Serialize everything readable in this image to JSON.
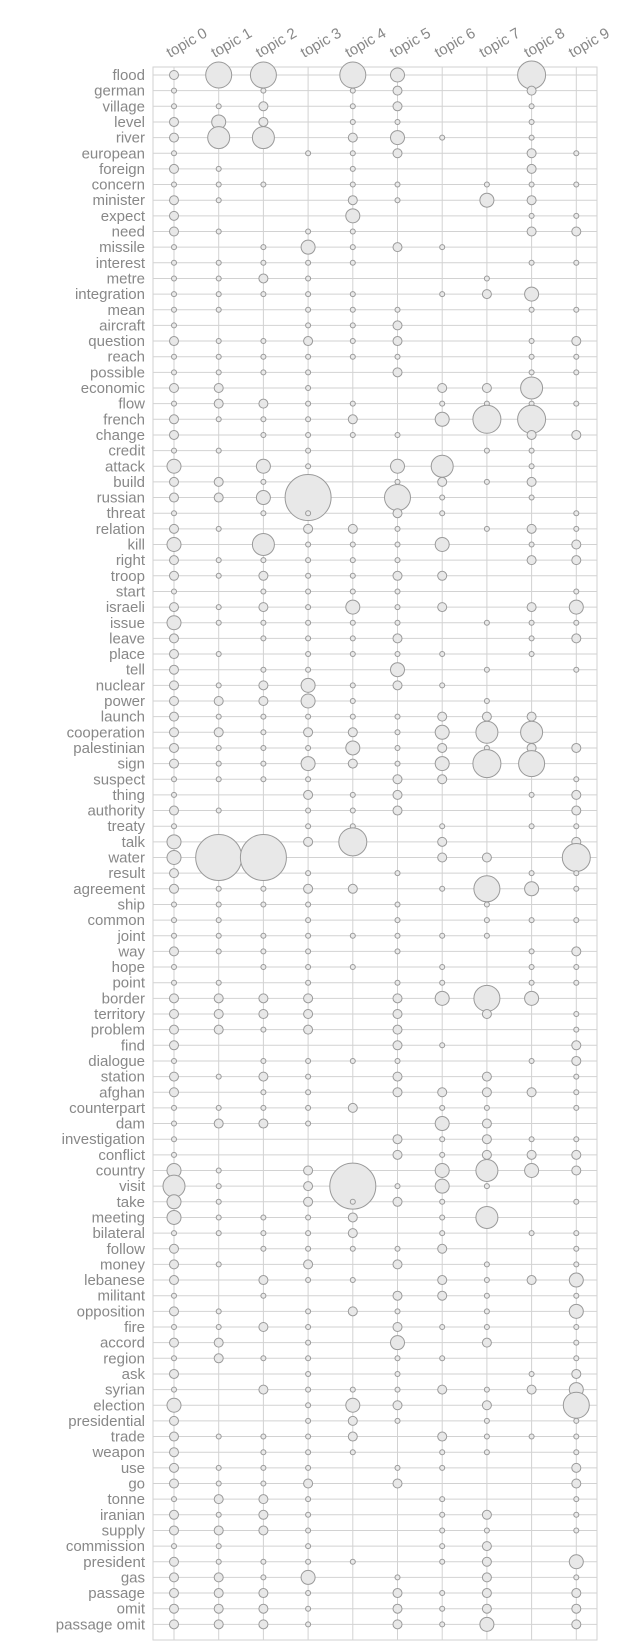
{
  "chart_data": {
    "type": "scatter",
    "subtype": "bubble-matrix",
    "title": "",
    "xlabel": "",
    "ylabel": "",
    "grid": true,
    "topics": [
      "topic 0",
      "topic 1",
      "topic 2",
      "topic 3",
      "topic 4",
      "topic 5",
      "topic 6",
      "topic 7",
      "topic 8",
      "topic 9"
    ],
    "words": [
      "flood",
      "german",
      "village",
      "level",
      "river",
      "european",
      "foreign",
      "concern",
      "minister",
      "expect",
      "need",
      "missile",
      "interest",
      "metre",
      "integration",
      "mean",
      "aircraft",
      "question",
      "reach",
      "possible",
      "economic",
      "flow",
      "french",
      "change",
      "credit",
      "attack",
      "build",
      "russian",
      "threat",
      "relation",
      "kill",
      "right",
      "troop",
      "start",
      "israeli",
      "issue",
      "leave",
      "place",
      "tell",
      "nuclear",
      "power",
      "launch",
      "cooperation",
      "palestinian",
      "sign",
      "suspect",
      "thing",
      "authority",
      "treaty",
      "talk",
      "water",
      "result",
      "agreement",
      "ship",
      "common",
      "joint",
      "way",
      "hope",
      "point",
      "border",
      "territory",
      "problem",
      "find",
      "dialogue",
      "station",
      "afghan",
      "counterpart",
      "dam",
      "investigation",
      "conflict",
      "country",
      "visit",
      "take",
      "meeting",
      "bilateral",
      "follow",
      "money",
      "lebanese",
      "militant",
      "opposition",
      "fire",
      "accord",
      "region",
      "ask",
      "syrian",
      "election",
      "presidential",
      "trade",
      "weapon",
      "use",
      "go",
      "tonne",
      "iranian",
      "supply",
      "commission",
      "president",
      "gas",
      "passage",
      "omit",
      "passage omit"
    ],
    "values": [
      [
        2,
        5,
        5,
        0,
        5,
        3,
        0,
        0,
        6,
        0
      ],
      [
        1,
        0,
        1,
        0,
        1,
        2,
        0,
        0,
        2,
        0
      ],
      [
        1,
        1,
        2,
        0,
        1,
        2,
        0,
        0,
        1,
        0
      ],
      [
        2,
        3,
        2,
        0,
        1,
        1,
        0,
        0,
        1,
        0
      ],
      [
        2,
        4,
        4,
        0,
        2,
        3,
        1,
        0,
        1,
        0
      ],
      [
        1,
        0,
        0,
        1,
        1,
        2,
        0,
        0,
        2,
        1
      ],
      [
        2,
        1,
        0,
        0,
        1,
        0,
        0,
        0,
        2,
        0
      ],
      [
        1,
        1,
        1,
        0,
        1,
        1,
        0,
        1,
        1,
        1
      ],
      [
        2,
        1,
        0,
        0,
        2,
        1,
        0,
        3,
        2,
        0
      ],
      [
        2,
        0,
        0,
        0,
        3,
        0,
        0,
        0,
        1,
        1
      ],
      [
        2,
        1,
        0,
        1,
        1,
        0,
        0,
        0,
        2,
        2
      ],
      [
        1,
        0,
        1,
        3,
        1,
        2,
        1,
        0,
        0,
        0
      ],
      [
        1,
        1,
        1,
        1,
        1,
        0,
        0,
        0,
        1,
        1
      ],
      [
        1,
        1,
        2,
        1,
        0,
        0,
        0,
        1,
        0,
        0
      ],
      [
        1,
        1,
        1,
        1,
        1,
        0,
        1,
        2,
        3,
        0
      ],
      [
        1,
        1,
        0,
        1,
        1,
        1,
        0,
        0,
        1,
        1
      ],
      [
        1,
        0,
        0,
        1,
        1,
        2,
        0,
        0,
        0,
        0
      ],
      [
        2,
        1,
        1,
        2,
        1,
        2,
        0,
        0,
        1,
        2
      ],
      [
        1,
        1,
        1,
        1,
        1,
        1,
        0,
        0,
        1,
        1
      ],
      [
        1,
        1,
        1,
        1,
        0,
        2,
        0,
        0,
        1,
        1
      ],
      [
        2,
        2,
        0,
        1,
        0,
        0,
        2,
        2,
        4,
        0
      ],
      [
        1,
        2,
        2,
        1,
        1,
        0,
        1,
        1,
        1,
        1
      ],
      [
        2,
        1,
        1,
        1,
        2,
        0,
        3,
        6,
        6,
        0
      ],
      [
        2,
        0,
        1,
        1,
        1,
        1,
        0,
        0,
        2,
        2
      ],
      [
        1,
        1,
        0,
        1,
        0,
        0,
        0,
        1,
        1,
        0
      ],
      [
        3,
        0,
        3,
        1,
        0,
        3,
        4,
        0,
        1,
        0
      ],
      [
        2,
        2,
        1,
        1,
        0,
        1,
        2,
        1,
        2,
        0
      ],
      [
        2,
        2,
        3,
        7,
        0,
        5,
        1,
        0,
        1,
        0
      ],
      [
        1,
        0,
        1,
        1,
        0,
        2,
        1,
        0,
        0,
        1
      ],
      [
        2,
        1,
        0,
        2,
        2,
        1,
        0,
        1,
        2,
        1
      ],
      [
        3,
        0,
        4,
        1,
        1,
        1,
        3,
        0,
        1,
        2
      ],
      [
        2,
        1,
        1,
        1,
        1,
        1,
        0,
        0,
        2,
        2
      ],
      [
        2,
        1,
        2,
        1,
        1,
        2,
        2,
        0,
        0,
        0
      ],
      [
        1,
        0,
        1,
        1,
        1,
        1,
        0,
        0,
        0,
        1
      ],
      [
        2,
        1,
        2,
        1,
        3,
        1,
        2,
        0,
        2,
        3
      ],
      [
        3,
        1,
        1,
        1,
        1,
        1,
        0,
        1,
        1,
        1
      ],
      [
        2,
        0,
        1,
        1,
        1,
        2,
        0,
        0,
        1,
        2
      ],
      [
        2,
        1,
        0,
        1,
        1,
        1,
        1,
        0,
        1,
        0
      ],
      [
        2,
        0,
        1,
        1,
        0,
        3,
        0,
        1,
        0,
        1
      ],
      [
        2,
        1,
        2,
        3,
        1,
        2,
        1,
        0,
        0,
        0
      ],
      [
        2,
        2,
        2,
        3,
        1,
        0,
        0,
        1,
        0,
        0
      ],
      [
        2,
        1,
        1,
        1,
        1,
        1,
        2,
        2,
        2,
        0
      ],
      [
        2,
        2,
        1,
        2,
        2,
        1,
        3,
        4,
        4,
        0
      ],
      [
        2,
        1,
        1,
        1,
        3,
        1,
        2,
        1,
        2,
        2
      ],
      [
        2,
        1,
        1,
        3,
        2,
        1,
        3,
        6,
        5,
        0
      ],
      [
        1,
        1,
        1,
        1,
        0,
        2,
        2,
        0,
        0,
        1
      ],
      [
        1,
        0,
        0,
        2,
        1,
        2,
        0,
        0,
        1,
        2
      ],
      [
        2,
        1,
        0,
        1,
        1,
        2,
        0,
        0,
        0,
        2
      ],
      [
        1,
        0,
        0,
        1,
        1,
        0,
        1,
        0,
        1,
        1
      ],
      [
        3,
        1,
        2,
        2,
        6,
        0,
        2,
        0,
        0,
        2
      ],
      [
        3,
        7,
        7,
        0,
        0,
        0,
        2,
        2,
        0,
        6
      ],
      [
        2,
        0,
        0,
        1,
        0,
        1,
        0,
        0,
        1,
        1
      ],
      [
        2,
        1,
        1,
        2,
        2,
        0,
        1,
        5,
        3,
        1
      ],
      [
        1,
        1,
        1,
        1,
        0,
        1,
        0,
        1,
        0,
        0
      ],
      [
        1,
        1,
        0,
        1,
        0,
        1,
        0,
        1,
        1,
        1
      ],
      [
        1,
        1,
        1,
        1,
        1,
        1,
        1,
        1,
        0,
        0
      ],
      [
        2,
        1,
        1,
        1,
        0,
        1,
        0,
        0,
        1,
        2
      ],
      [
        1,
        0,
        1,
        1,
        1,
        0,
        1,
        0,
        1,
        1
      ],
      [
        1,
        1,
        0,
        1,
        0,
        1,
        1,
        0,
        1,
        1
      ],
      [
        2,
        2,
        2,
        2,
        0,
        2,
        3,
        5,
        3,
        0
      ],
      [
        2,
        2,
        2,
        2,
        0,
        2,
        0,
        2,
        0,
        1
      ],
      [
        2,
        2,
        1,
        2,
        0,
        2,
        0,
        0,
        0,
        1
      ],
      [
        2,
        0,
        0,
        0,
        0,
        2,
        1,
        0,
        0,
        2
      ],
      [
        1,
        0,
        1,
        1,
        1,
        1,
        0,
        0,
        1,
        2
      ],
      [
        2,
        1,
        2,
        1,
        0,
        2,
        0,
        2,
        0,
        1
      ],
      [
        2,
        0,
        1,
        1,
        0,
        2,
        2,
        2,
        2,
        1
      ],
      [
        1,
        1,
        1,
        1,
        2,
        0,
        1,
        1,
        0,
        1
      ],
      [
        1,
        2,
        2,
        1,
        0,
        0,
        3,
        2,
        0,
        0
      ],
      [
        1,
        0,
        0,
        0,
        0,
        2,
        1,
        2,
        1,
        1
      ],
      [
        1,
        0,
        0,
        0,
        0,
        2,
        1,
        2,
        2,
        2
      ],
      [
        3,
        1,
        0,
        2,
        2,
        0,
        3,
        4,
        3,
        2
      ],
      [
        4,
        1,
        0,
        2,
        7,
        1,
        3,
        1,
        0,
        0
      ],
      [
        3,
        1,
        0,
        2,
        1,
        2,
        1,
        0,
        0,
        1
      ],
      [
        3,
        1,
        1,
        1,
        2,
        0,
        1,
        4,
        0,
        0
      ],
      [
        1,
        1,
        1,
        1,
        2,
        0,
        1,
        0,
        1,
        1
      ],
      [
        2,
        0,
        1,
        1,
        1,
        1,
        2,
        0,
        0,
        1
      ],
      [
        2,
        1,
        0,
        2,
        0,
        2,
        0,
        1,
        0,
        1
      ],
      [
        2,
        0,
        2,
        1,
        1,
        0,
        2,
        1,
        2,
        3
      ],
      [
        1,
        0,
        1,
        0,
        0,
        2,
        2,
        1,
        0,
        1
      ],
      [
        2,
        1,
        0,
        1,
        2,
        1,
        0,
        1,
        0,
        3
      ],
      [
        1,
        1,
        2,
        1,
        0,
        2,
        1,
        1,
        0,
        1
      ],
      [
        2,
        2,
        0,
        1,
        0,
        3,
        0,
        2,
        0,
        1
      ],
      [
        1,
        2,
        1,
        1,
        0,
        1,
        1,
        0,
        0,
        1
      ],
      [
        2,
        0,
        0,
        1,
        0,
        1,
        0,
        0,
        1,
        2
      ],
      [
        1,
        0,
        2,
        1,
        1,
        1,
        2,
        1,
        2,
        3
      ],
      [
        3,
        0,
        0,
        1,
        3,
        2,
        0,
        2,
        0,
        5
      ],
      [
        2,
        0,
        0,
        1,
        2,
        1,
        0,
        1,
        0,
        1
      ],
      [
        2,
        1,
        1,
        1,
        2,
        0,
        2,
        1,
        1,
        1
      ],
      [
        2,
        0,
        1,
        1,
        1,
        0,
        1,
        1,
        0,
        1
      ],
      [
        2,
        1,
        1,
        1,
        0,
        1,
        1,
        0,
        0,
        2
      ],
      [
        2,
        1,
        1,
        2,
        0,
        2,
        0,
        0,
        0,
        2
      ],
      [
        1,
        2,
        2,
        1,
        0,
        0,
        1,
        0,
        0,
        1
      ],
      [
        2,
        1,
        2,
        1,
        0,
        0,
        1,
        2,
        0,
        1
      ],
      [
        2,
        2,
        2,
        1,
        0,
        0,
        1,
        1,
        0,
        1
      ],
      [
        1,
        1,
        0,
        1,
        0,
        0,
        1,
        2,
        0,
        0
      ],
      [
        2,
        1,
        1,
        1,
        1,
        0,
        1,
        2,
        0,
        3
      ],
      [
        2,
        2,
        1,
        3,
        0,
        1,
        0,
        2,
        0,
        1
      ],
      [
        2,
        2,
        2,
        1,
        0,
        2,
        1,
        2,
        0,
        2
      ],
      [
        2,
        2,
        2,
        1,
        0,
        2,
        1,
        2,
        0,
        2
      ],
      [
        2,
        2,
        2,
        1,
        0,
        2,
        1,
        3,
        0,
        2
      ]
    ],
    "value_scale": "relative weight, 0 = no bubble, 7 = largest"
  }
}
